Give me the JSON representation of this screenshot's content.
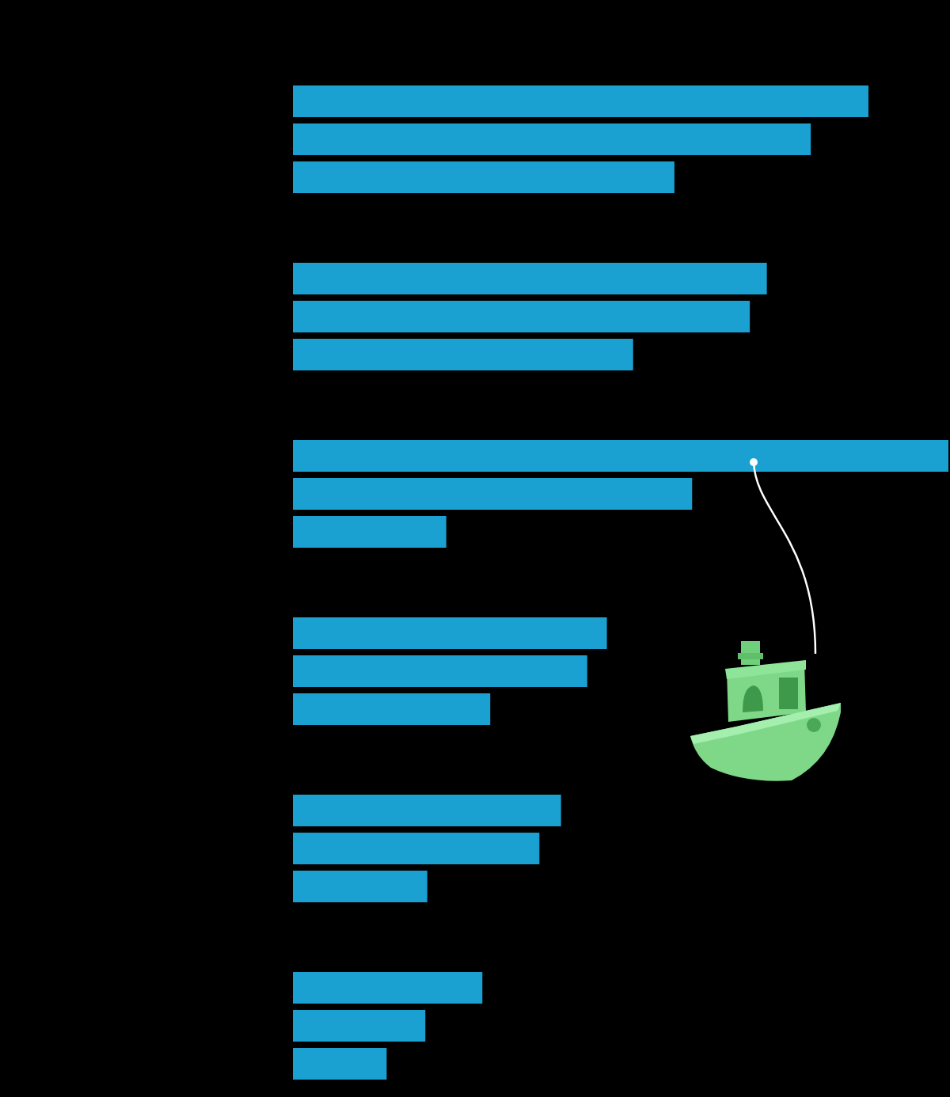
{
  "chart_data": {
    "type": "bar",
    "orientation": "horizontal",
    "categories": [
      null,
      null,
      null,
      null,
      null,
      null
    ],
    "color": "#1ba1d1",
    "series": [
      {
        "values": [
          87.8,
          72.3,
          100,
          47.9,
          40.9,
          28.9
        ]
      },
      {
        "values": [
          79.0,
          69.7,
          60.9,
          44.9,
          37.6,
          20.2
        ]
      },
      {
        "values": [
          58.2,
          51.9,
          23.4,
          30.1,
          20.5,
          14.3
        ]
      }
    ],
    "xlim": [
      0,
      100
    ],
    "grid": false,
    "tick_labels": false
  }
}
